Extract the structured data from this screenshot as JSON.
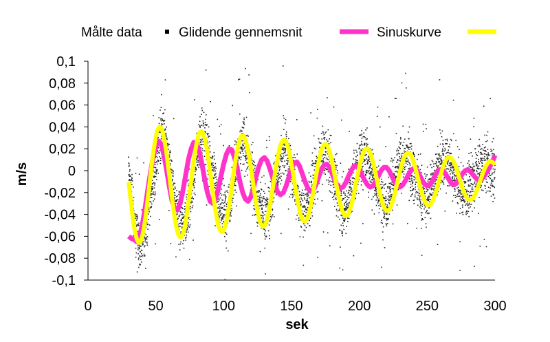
{
  "chart_data": {
    "type": "scatter",
    "title": "",
    "xlabel": "sek",
    "ylabel": "m/s",
    "xlim": [
      0,
      300
    ],
    "ylim": [
      -0.1,
      0.1
    ],
    "x_ticks": [
      0,
      50,
      100,
      150,
      200,
      250,
      300
    ],
    "x_tick_labels": [
      "0",
      "50",
      "100",
      "150",
      "200",
      "250",
      "300"
    ],
    "y_ticks": [
      0.1,
      0.08,
      0.06,
      0.04,
      0.02,
      0,
      -0.02,
      -0.04,
      -0.06,
      -0.08,
      -0.1
    ],
    "y_tick_labels": [
      "0,1",
      "0,08",
      "0,06",
      "0,04",
      "0,02",
      "0",
      "-0,02",
      "-0,04",
      "-0,06",
      "-0,08",
      "-0,1"
    ],
    "grid": false,
    "legend_position": "top",
    "series": [
      {
        "name": "Målte data",
        "kind": "scatter",
        "color": "#000000",
        "x": [
          30,
          35,
          38,
          42,
          45,
          50,
          52,
          55,
          58,
          62,
          66,
          70,
          74,
          78,
          82,
          85,
          88,
          92,
          96,
          100,
          104,
          108,
          112,
          115,
          118,
          122,
          126,
          130,
          134,
          138,
          142,
          145,
          148,
          152,
          156,
          160,
          164,
          168,
          172,
          175,
          178,
          182,
          186,
          190,
          194,
          198,
          202,
          205,
          208,
          212,
          216,
          220,
          224,
          228,
          232,
          235,
          238,
          242,
          246,
          250,
          254,
          258,
          262,
          265,
          268,
          272,
          276,
          280,
          284,
          288,
          292,
          295,
          298,
          300
        ],
        "y": [
          0.0,
          -0.055,
          -0.07,
          -0.06,
          -0.03,
          0.0,
          0.025,
          0.035,
          0.02,
          -0.01,
          -0.04,
          -0.05,
          -0.035,
          -0.005,
          0.025,
          0.035,
          0.025,
          0.0,
          -0.025,
          -0.04,
          -0.03,
          -0.005,
          0.015,
          0.025,
          0.015,
          -0.01,
          -0.03,
          -0.04,
          -0.035,
          -0.01,
          0.01,
          0.02,
          0.01,
          -0.01,
          -0.03,
          -0.04,
          -0.025,
          -0.005,
          0.01,
          0.018,
          0.008,
          -0.01,
          -0.03,
          -0.035,
          -0.02,
          0.0,
          0.012,
          0.016,
          0.005,
          -0.012,
          -0.025,
          -0.03,
          -0.018,
          0.0,
          0.01,
          0.012,
          0.004,
          -0.01,
          -0.022,
          -0.025,
          -0.012,
          0.002,
          0.008,
          0.01,
          0.002,
          -0.01,
          -0.02,
          -0.02,
          -0.01,
          0.0,
          0.006,
          0.005,
          -0.002,
          -0.005
        ]
      },
      {
        "name": "Glidende gennemsnit",
        "kind": "line",
        "color": "#ff33cc",
        "x": [
          30,
          32,
          34,
          36,
          38,
          40,
          42,
          44,
          46,
          48,
          50,
          52,
          54,
          56,
          58,
          60,
          62,
          64,
          66,
          68,
          70,
          72,
          74,
          76,
          78,
          80,
          82,
          84,
          86,
          88,
          90,
          92,
          94,
          96,
          98,
          100,
          102,
          104,
          106,
          108,
          110,
          112,
          114,
          116,
          118,
          120,
          122,
          124,
          126,
          128,
          130,
          132,
          134,
          136,
          138,
          140,
          142,
          144,
          146,
          148,
          150,
          152,
          154,
          156,
          158,
          160,
          162,
          164,
          166,
          168,
          170,
          172,
          174,
          176,
          178,
          180,
          182,
          184,
          186,
          188,
          190,
          192,
          194,
          196,
          198,
          200,
          202,
          204,
          206,
          208,
          210,
          212,
          214,
          216,
          218,
          220,
          222,
          224,
          226,
          228,
          230,
          232,
          234,
          236,
          238,
          240,
          242,
          244,
          246,
          248,
          250,
          252,
          254,
          256,
          258,
          260,
          262,
          264,
          266,
          268,
          270,
          272,
          274,
          276,
          278,
          280,
          282,
          284,
          286,
          288,
          290,
          292,
          294,
          296,
          298,
          300
        ],
        "y": [
          -0.06,
          -0.062,
          -0.063,
          -0.065,
          -0.06,
          -0.05,
          -0.035,
          -0.018,
          -0.002,
          0.012,
          0.022,
          0.027,
          0.024,
          0.014,
          0.0,
          -0.015,
          -0.028,
          -0.035,
          -0.036,
          -0.03,
          -0.018,
          -0.004,
          0.01,
          0.02,
          0.026,
          0.025,
          0.018,
          0.006,
          -0.008,
          -0.02,
          -0.028,
          -0.03,
          -0.026,
          -0.017,
          -0.005,
          0.006,
          0.015,
          0.02,
          0.019,
          0.012,
          0.002,
          -0.01,
          -0.02,
          -0.026,
          -0.028,
          -0.024,
          -0.016,
          -0.005,
          0.004,
          0.01,
          0.012,
          0.009,
          0.002,
          -0.006,
          -0.014,
          -0.02,
          -0.022,
          -0.02,
          -0.014,
          -0.006,
          0.002,
          0.007,
          0.008,
          0.004,
          -0.003,
          -0.01,
          -0.016,
          -0.019,
          -0.018,
          -0.013,
          -0.006,
          0.001,
          0.005,
          0.006,
          0.003,
          -0.003,
          -0.009,
          -0.014,
          -0.016,
          -0.015,
          -0.011,
          -0.005,
          0.0,
          0.004,
          0.004,
          0.001,
          -0.004,
          -0.009,
          -0.013,
          -0.015,
          -0.014,
          -0.01,
          -0.005,
          0.0,
          0.003,
          0.003,
          0.0,
          -0.005,
          -0.01,
          -0.014,
          -0.015,
          -0.013,
          -0.009,
          -0.004,
          0.0,
          0.002,
          0.001,
          -0.003,
          -0.008,
          -0.012,
          -0.014,
          -0.013,
          -0.009,
          -0.004,
          0.0,
          0.001,
          0.0,
          -0.004,
          -0.008,
          -0.012,
          -0.013,
          -0.011,
          -0.007,
          -0.003,
          0.0,
          0.001,
          -0.001,
          -0.004,
          -0.007,
          -0.009,
          -0.008,
          -0.005,
          -0.001,
          0.003,
          0.008,
          0.014
        ]
      },
      {
        "name": "Sinuskurve",
        "kind": "line",
        "color": "#ffff00",
        "amplitude_start": 0.055,
        "amplitude_end": 0.016,
        "offset_start": -0.012,
        "offset_end": -0.008,
        "period": 30.5,
        "phase_peak_at": 53,
        "x_start": 30,
        "x_end": 300
      }
    ]
  }
}
